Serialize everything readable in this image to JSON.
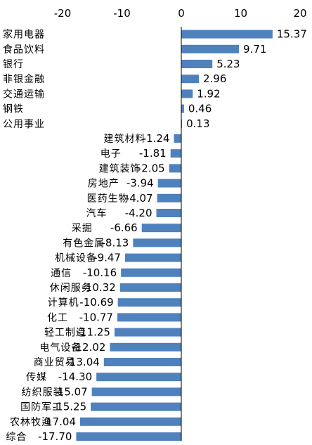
{
  "chart_data": {
    "type": "bar",
    "orientation": "horizontal",
    "title": "",
    "xlabel": "",
    "ylabel": "",
    "xlim": [
      -20,
      20
    ],
    "xticks": [
      "-20",
      "-10",
      "0",
      "10",
      "20"
    ],
    "grid": false,
    "legend": "none",
    "colors": {
      "bar": "#4f81bd",
      "axis": "#000000",
      "text": "#000000"
    },
    "categories": [
      "家用电器",
      "食品饮料",
      "银行",
      "非银金融",
      "交通运输",
      "钢铁",
      "公用事业",
      "建筑材料",
      "电子",
      "建筑装饰",
      "房地产",
      "医药生物",
      "汽车",
      "采掘",
      "有色金属",
      "机械设备",
      "通信",
      "休闲服务",
      "计算机",
      "化工",
      "轻工制造",
      "电气设备",
      "商业贸易",
      "传媒",
      "纺织服装",
      "国防军工",
      "农林牧渔",
      "综合"
    ],
    "values": [
      15.37,
      9.71,
      5.23,
      2.96,
      1.92,
      0.46,
      0.13,
      -1.24,
      -1.81,
      -2.05,
      -3.94,
      -4.07,
      -4.2,
      -6.66,
      -8.13,
      -9.47,
      -10.16,
      -10.32,
      -10.69,
      -10.77,
      -11.25,
      -12.02,
      -13.04,
      -14.3,
      -15.07,
      -15.25,
      -17.04,
      -17.7
    ],
    "labels": [
      "15.37",
      "9.71",
      "5.23",
      "2.96",
      "1.92",
      "0.46",
      "0.13",
      "-1.24",
      "-1.81",
      "-2.05",
      "-3.94",
      "-4.07",
      "-4.20",
      "-6.66",
      "-8.13",
      "-9.47",
      "-10.16",
      "-10.32",
      "-10.69",
      "-10.77",
      "-11.25",
      "-12.02",
      "-13.04",
      "-14.30",
      "-15.07",
      "-15.25",
      "-17.04",
      "-17.70"
    ]
  }
}
